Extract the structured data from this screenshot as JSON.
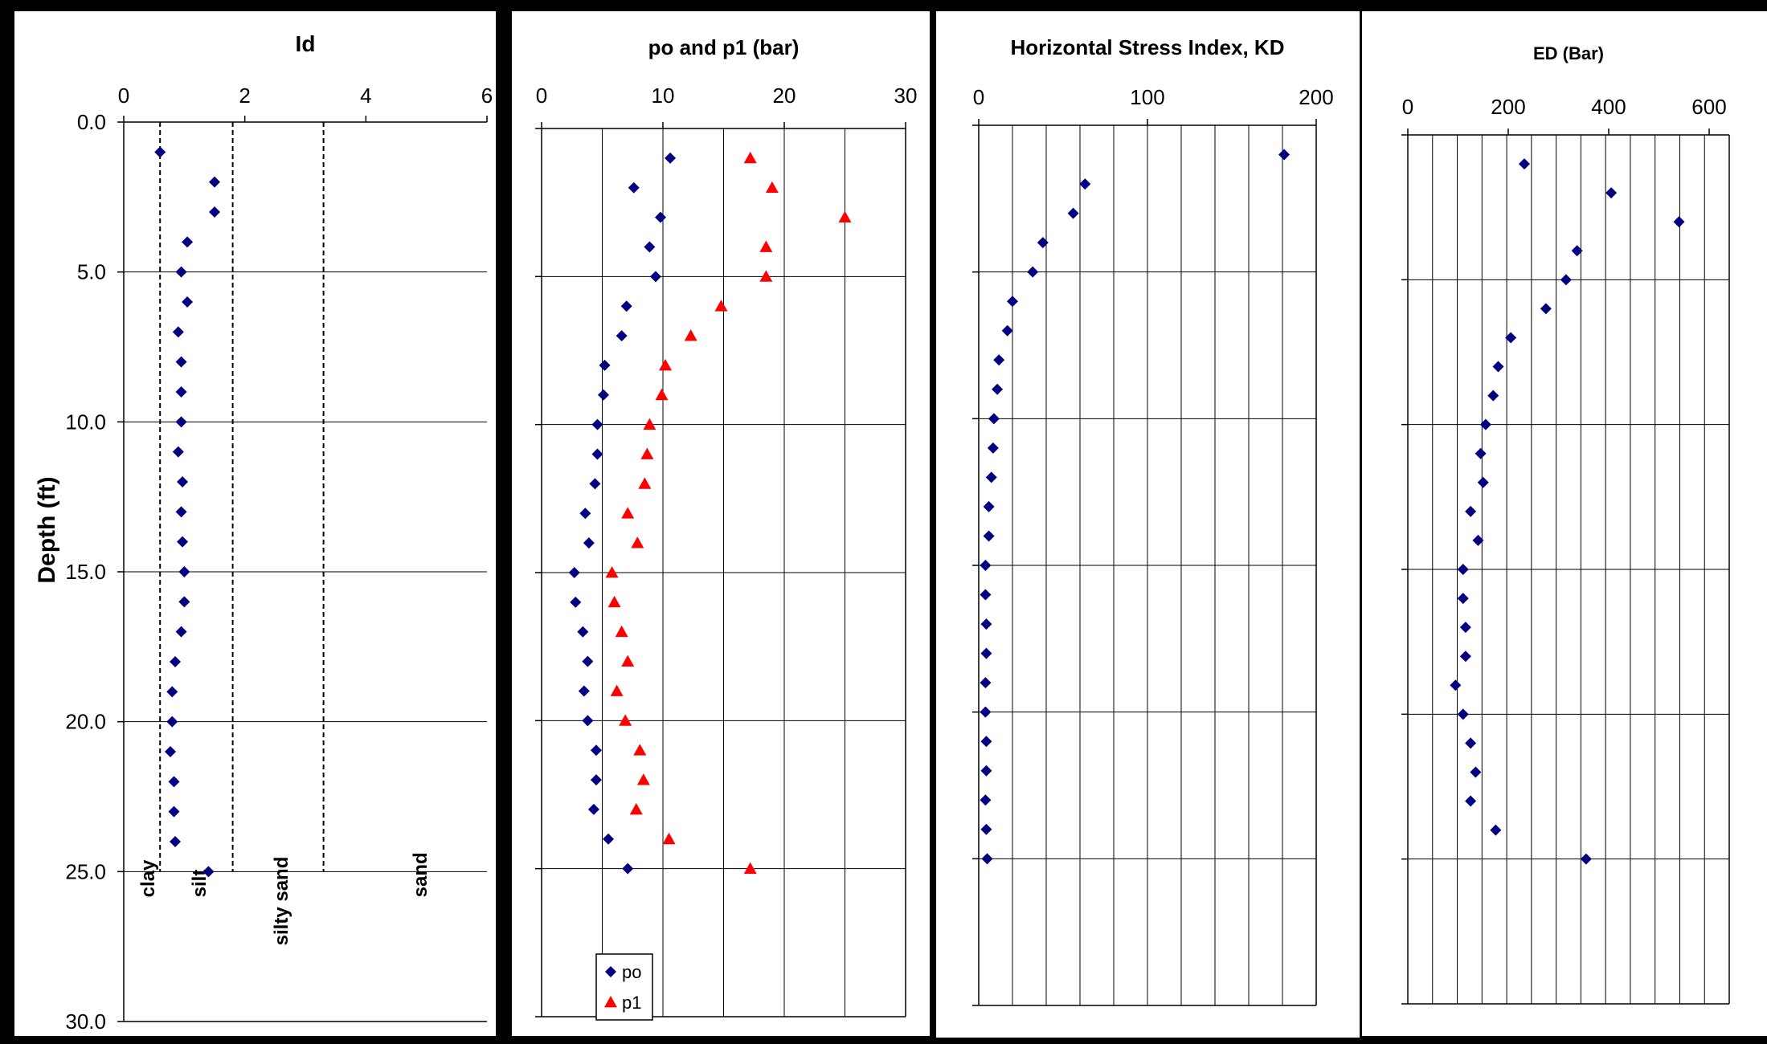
{
  "colors": {
    "po": "#000080",
    "p1": "#ff0000",
    "background": "#ffffff",
    "frame": "#000000"
  },
  "ylabel": "Depth (ft)",
  "yticks": [
    "0.0",
    "5.0",
    "10.0",
    "15.0",
    "20.0",
    "25.0",
    "30.0"
  ],
  "zone_labels": [
    "clay",
    "silt",
    "silty sand",
    "sand"
  ],
  "chart_data": [
    {
      "type": "scatter",
      "title": "Id",
      "xlim": [
        0,
        6
      ],
      "xticks": [
        "0",
        "2",
        "4",
        "6"
      ],
      "ylim": [
        0,
        30
      ],
      "y_inverted": true,
      "grid": "horizontal",
      "zone_boundaries": [
        0.6,
        1.8,
        3.3
      ],
      "series": [
        {
          "marker": "diamond",
          "x": [
            0.6,
            1.5,
            1.5,
            1.05,
            0.95,
            1.05,
            0.9,
            0.95,
            0.95,
            0.95,
            0.9,
            0.97,
            0.95,
            0.97,
            1.0,
            1.0,
            0.95,
            0.85,
            0.8,
            0.8,
            0.77,
            0.83,
            0.83,
            0.85,
            1.4
          ],
          "y": [
            1,
            2,
            3,
            4,
            5,
            6,
            7,
            8,
            9,
            10,
            11,
            12,
            13,
            14,
            15,
            16,
            17,
            18,
            19,
            20,
            21,
            22,
            23,
            24,
            25
          ]
        }
      ]
    },
    {
      "type": "scatter",
      "title": "po and p1 (bar)",
      "xlim": [
        0,
        30
      ],
      "xticks": [
        "0",
        "10",
        "20",
        "30"
      ],
      "ylim": [
        0,
        30
      ],
      "y_inverted": true,
      "grid": "both",
      "legend": "bottom-left",
      "series": [
        {
          "name": "po",
          "marker": "diamond",
          "x": [
            10.6,
            7.6,
            9.8,
            8.9,
            9.4,
            7.0,
            6.6,
            5.2,
            5.1,
            4.6,
            4.6,
            4.4,
            3.6,
            3.9,
            2.7,
            2.8,
            3.4,
            3.8,
            3.5,
            3.8,
            4.5,
            4.5,
            4.3,
            5.5,
            7.1
          ],
          "y": [
            1,
            2,
            3,
            4,
            5,
            6,
            7,
            8,
            9,
            10,
            11,
            12,
            13,
            14,
            15,
            16,
            17,
            18,
            19,
            20,
            21,
            22,
            23,
            24,
            25
          ]
        },
        {
          "name": "p1",
          "marker": "triangle",
          "x": [
            17.2,
            19.0,
            25.0,
            18.5,
            18.5,
            14.8,
            12.3,
            10.2,
            9.9,
            8.9,
            8.7,
            8.5,
            7.1,
            7.9,
            5.8,
            6.0,
            6.6,
            7.1,
            6.2,
            6.9,
            8.1,
            8.4,
            7.8,
            10.5,
            17.2
          ],
          "y": [
            1,
            2,
            3,
            4,
            5,
            6,
            7,
            8,
            9,
            10,
            11,
            12,
            13,
            14,
            15,
            16,
            17,
            18,
            19,
            20,
            21,
            22,
            23,
            24,
            25
          ]
        }
      ]
    },
    {
      "type": "scatter",
      "title": "Horizontal Stress Index, KD",
      "xlim": [
        0,
        200
      ],
      "xticks": [
        "0",
        "100",
        "200"
      ],
      "ylim": [
        0,
        30
      ],
      "y_inverted": true,
      "grid": "both",
      "series": [
        {
          "marker": "diamond",
          "x": [
            181,
            63,
            56,
            38,
            32,
            20,
            17,
            12,
            11,
            9,
            8.5,
            7.5,
            6,
            6,
            4,
            4,
            4.5,
            4.5,
            4,
            4,
            4.5,
            4.5,
            4,
            4.5,
            5
          ],
          "y": [
            1,
            2,
            3,
            4,
            5,
            6,
            7,
            8,
            9,
            10,
            11,
            12,
            13,
            14,
            15,
            16,
            17,
            18,
            19,
            20,
            21,
            22,
            23,
            24,
            25
          ]
        }
      ]
    },
    {
      "type": "scatter",
      "title": "ED (Bar)",
      "xlim": [
        0,
        640
      ],
      "xticks": [
        "0",
        "200",
        "400",
        "600"
      ],
      "ylim": [
        0,
        30
      ],
      "y_inverted": true,
      "grid": "both",
      "series": [
        {
          "marker": "diamond",
          "x": [
            232,
            405,
            540,
            337,
            315,
            275,
            205,
            180,
            170,
            155,
            145,
            150,
            125,
            140,
            110,
            110,
            115,
            115,
            95,
            110,
            125,
            135,
            125,
            175,
            355
          ],
          "y": [
            1,
            2,
            3,
            4,
            5,
            6,
            7,
            8,
            9,
            10,
            11,
            12,
            13,
            14,
            15,
            16,
            17,
            18,
            19,
            20,
            21,
            22,
            23,
            24,
            25
          ]
        }
      ]
    }
  ]
}
